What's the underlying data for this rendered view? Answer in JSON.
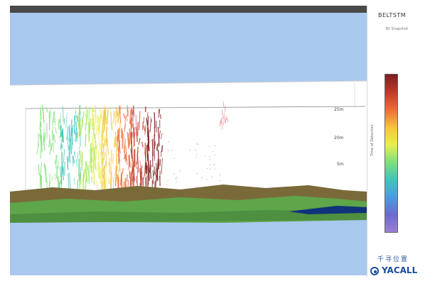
{
  "panel": {
    "title": "BELTSTM",
    "subtitle": "3D Snapshot",
    "colorbar_label": "Time of Detection"
  },
  "scale_labels": [
    "25m",
    "20m",
    "5m"
  ],
  "logo": {
    "text": "千寻位置",
    "word": "YACALL",
    "icon": "logo-circle-icon"
  },
  "colors": {
    "sky": "#a9c8ee",
    "terrain_green": "#5fa54a",
    "terrain_brown": "#7a6a3a",
    "water": "#10327a"
  },
  "colorbar_stops": [
    "#7b1e1e",
    "#c0392b",
    "#f06a3a",
    "#f6c33a",
    "#e8f04a",
    "#7fe07a",
    "#3ec6b8",
    "#4a9ce0",
    "#6a6ad0",
    "#9a7fd0"
  ]
}
